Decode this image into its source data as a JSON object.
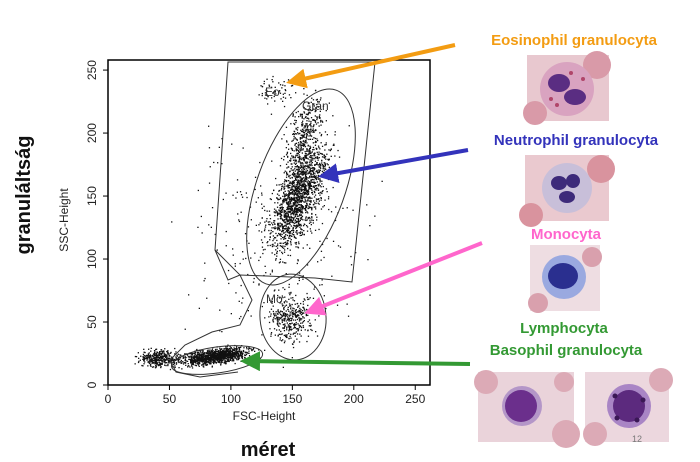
{
  "axes": {
    "y_outer_label": "granuláltság",
    "x_outer_label": "méret",
    "y_inner_label": "SSC-Height",
    "x_inner_label": "FSC-Height",
    "x_ticks": [
      "0",
      "50",
      "100",
      "150",
      "200",
      "250"
    ],
    "y_ticks": [
      "0",
      "50",
      "100",
      "150",
      "200",
      "250"
    ]
  },
  "gates": {
    "eo": "Eo",
    "gran": "Gran",
    "mo": "Mo"
  },
  "labels": {
    "eosinophil": "Eosinophil granulocyta",
    "neutrophil": "Neutrophil granulocyta",
    "monocyta": "Monocyta",
    "lymphocyta": "Lymphocyta",
    "basophil": "Basophil granulocyta"
  },
  "colors": {
    "eosinophil": "#f39c12",
    "neutrophil": "#3333bb",
    "monocyta": "#ff66cc",
    "lymphocyta": "#339933"
  },
  "page_number": "12"
}
